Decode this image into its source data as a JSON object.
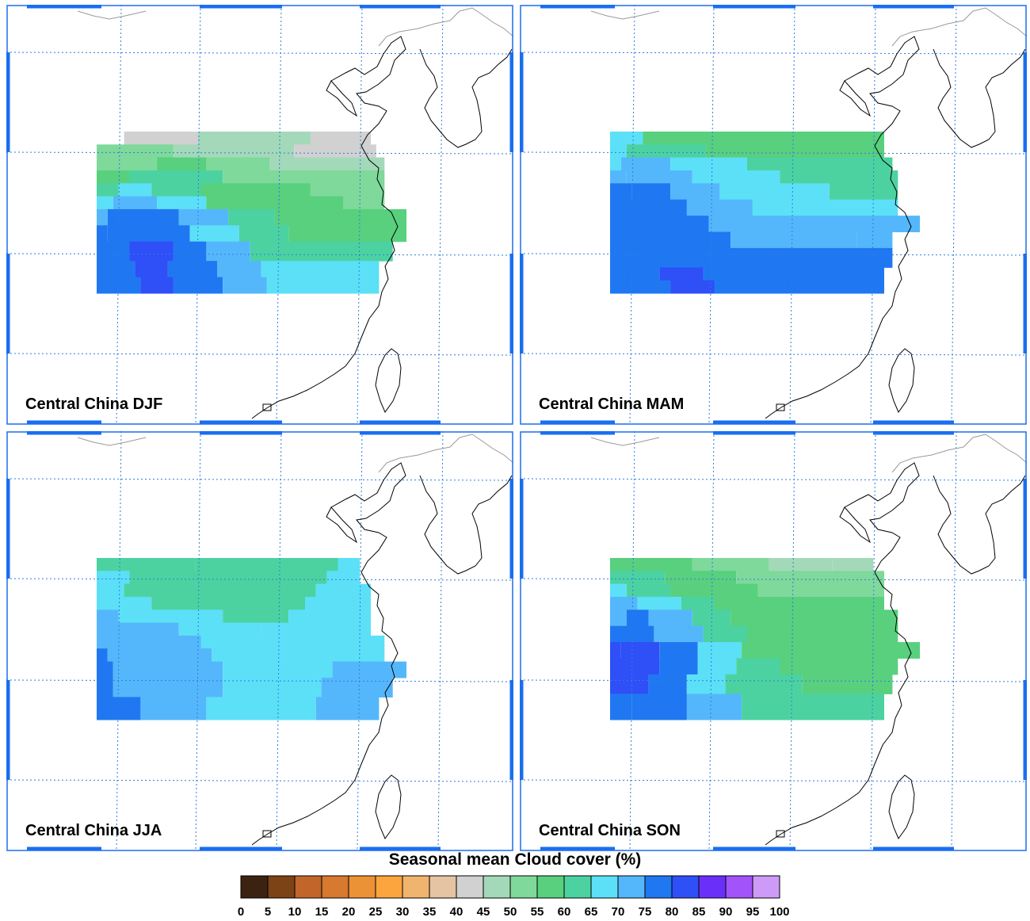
{
  "panels": [
    {
      "label": "Central China DJF",
      "bands": [
        {
          "y": 0.0,
          "parts": [
            [
              0.1,
              0.37,
              "#d1d1d1"
            ],
            [
              0.37,
              0.78,
              "#a3d9b8"
            ],
            [
              0.78,
              1.0,
              "#d1d1d1"
            ]
          ]
        },
        {
          "y": 0.08,
          "parts": [
            [
              0.0,
              0.28,
              "#7ed99a"
            ],
            [
              0.28,
              0.72,
              "#a3d9b8"
            ],
            [
              0.72,
              1.02,
              "#d1d1d1"
            ]
          ]
        },
        {
          "y": 0.16,
          "parts": [
            [
              0.0,
              0.22,
              "#7ed99a"
            ],
            [
              0.22,
              0.4,
              "#58d07e"
            ],
            [
              0.4,
              0.63,
              "#7ed99a"
            ],
            [
              0.63,
              1.05,
              "#a3d9b8"
            ]
          ]
        },
        {
          "y": 0.24,
          "parts": [
            [
              0.0,
              0.12,
              "#58d07e"
            ],
            [
              0.12,
              0.46,
              "#4cd2a0"
            ],
            [
              0.46,
              1.05,
              "#7ed99a"
            ]
          ]
        },
        {
          "y": 0.32,
          "parts": [
            [
              0.0,
              0.08,
              "#4cd2a0"
            ],
            [
              0.08,
              0.2,
              "#5ce0f7"
            ],
            [
              0.2,
              0.38,
              "#4cd2a0"
            ],
            [
              0.38,
              0.78,
              "#58d07e"
            ],
            [
              0.78,
              1.05,
              "#7ed99a"
            ]
          ]
        },
        {
          "y": 0.4,
          "parts": [
            [
              0.0,
              0.06,
              "#5ce0f7"
            ],
            [
              0.06,
              0.22,
              "#55b7fb"
            ],
            [
              0.22,
              0.4,
              "#5ce0f7"
            ],
            [
              0.4,
              0.9,
              "#58d07e"
            ],
            [
              0.9,
              1.05,
              "#7ed99a"
            ]
          ]
        },
        {
          "y": 0.48,
          "parts": [
            [
              0.0,
              0.04,
              "#55b7fb"
            ],
            [
              0.04,
              0.3,
              "#1f78f2"
            ],
            [
              0.3,
              0.48,
              "#55b7fb"
            ],
            [
              0.48,
              0.65,
              "#4cd2a0"
            ],
            [
              0.65,
              1.13,
              "#58d07e"
            ]
          ]
        },
        {
          "y": 0.58,
          "parts": [
            [
              0.0,
              0.04,
              "#1f78f2"
            ],
            [
              0.04,
              0.34,
              "#1f78f2"
            ],
            [
              0.34,
              0.52,
              "#5ce0f7"
            ],
            [
              0.52,
              0.7,
              "#4cd2a0"
            ],
            [
              0.7,
              1.13,
              "#58d07e"
            ]
          ]
        },
        {
          "y": 0.68,
          "parts": [
            [
              0.0,
              0.12,
              "#1f78f2"
            ],
            [
              0.12,
              0.28,
              "#2f4ff7"
            ],
            [
              0.28,
              0.4,
              "#1f78f2"
            ],
            [
              0.4,
              0.56,
              "#55b7fb"
            ],
            [
              0.56,
              1.08,
              "#4cd2a0"
            ]
          ]
        },
        {
          "y": 0.8,
          "parts": [
            [
              0.0,
              0.14,
              "#1f78f2"
            ],
            [
              0.14,
              0.26,
              "#2f4ff7"
            ],
            [
              0.26,
              0.44,
              "#1f78f2"
            ],
            [
              0.44,
              0.6,
              "#55b7fb"
            ],
            [
              0.6,
              1.03,
              "#5ce0f7"
            ]
          ]
        },
        {
          "y": 0.9,
          "parts": [
            [
              0.0,
              0.16,
              "#1f78f2"
            ],
            [
              0.16,
              0.28,
              "#2f4ff7"
            ],
            [
              0.28,
              0.46,
              "#1f78f2"
            ],
            [
              0.46,
              0.62,
              "#55b7fb"
            ],
            [
              0.62,
              1.03,
              "#5ce0f7"
            ]
          ]
        }
      ]
    },
    {
      "label": "Central China MAM",
      "bands": [
        {
          "y": 0.0,
          "parts": [
            [
              0.0,
              0.12,
              "#5ce0f7"
            ],
            [
              0.12,
              1.0,
              "#58d07e"
            ]
          ]
        },
        {
          "y": 0.08,
          "parts": [
            [
              0.0,
              0.06,
              "#5ce0f7"
            ],
            [
              0.06,
              0.35,
              "#4cd2a0"
            ],
            [
              0.35,
              1.0,
              "#58d07e"
            ]
          ]
        },
        {
          "y": 0.16,
          "parts": [
            [
              0.0,
              0.04,
              "#5ce0f7"
            ],
            [
              0.04,
              0.22,
              "#55b7fb"
            ],
            [
              0.22,
              0.5,
              "#5ce0f7"
            ],
            [
              0.5,
              1.03,
              "#4cd2a0"
            ]
          ]
        },
        {
          "y": 0.24,
          "parts": [
            [
              0.0,
              0.06,
              "#55b7fb"
            ],
            [
              0.06,
              0.3,
              "#55b7fb"
            ],
            [
              0.3,
              0.62,
              "#5ce0f7"
            ],
            [
              0.62,
              1.05,
              "#4cd2a0"
            ]
          ]
        },
        {
          "y": 0.32,
          "parts": [
            [
              0.0,
              0.08,
              "#1f78f2"
            ],
            [
              0.08,
              0.22,
              "#1f78f2"
            ],
            [
              0.22,
              0.4,
              "#55b7fb"
            ],
            [
              0.4,
              0.8,
              "#5ce0f7"
            ],
            [
              0.8,
              1.05,
              "#4cd2a0"
            ]
          ]
        },
        {
          "y": 0.42,
          "parts": [
            [
              0.0,
              0.28,
              "#1f78f2"
            ],
            [
              0.28,
              0.52,
              "#55b7fb"
            ],
            [
              0.52,
              1.05,
              "#5ce0f7"
            ]
          ]
        },
        {
          "y": 0.52,
          "parts": [
            [
              0.0,
              0.36,
              "#1f78f2"
            ],
            [
              0.36,
              0.62,
              "#55b7fb"
            ],
            [
              0.62,
              1.0,
              "#55b7fb"
            ],
            [
              1.0,
              1.13,
              "#55b7fb"
            ]
          ]
        },
        {
          "y": 0.62,
          "parts": [
            [
              0.0,
              0.44,
              "#1f78f2"
            ],
            [
              0.44,
              0.9,
              "#55b7fb"
            ],
            [
              0.9,
              1.03,
              "#55b7fb"
            ]
          ]
        },
        {
          "y": 0.72,
          "parts": [
            [
              0.0,
              1.03,
              "#1f78f2"
            ]
          ]
        },
        {
          "y": 0.84,
          "parts": [
            [
              0.0,
              0.18,
              "#1f78f2"
            ],
            [
              0.18,
              0.34,
              "#2f4ff7"
            ],
            [
              0.34,
              1.0,
              "#1f78f2"
            ]
          ]
        },
        {
          "y": 0.92,
          "parts": [
            [
              0.0,
              0.22,
              "#1f78f2"
            ],
            [
              0.22,
              0.38,
              "#2f4ff7"
            ],
            [
              0.38,
              1.0,
              "#1f78f2"
            ]
          ]
        }
      ]
    },
    {
      "label": "Central China JJA",
      "bands": [
        {
          "y": 0.0,
          "parts": [
            [
              0.0,
              0.36,
              "#4cd2a0"
            ],
            [
              0.36,
              0.88,
              "#4cd2a0"
            ],
            [
              0.88,
              0.96,
              "#5ce0f7"
            ]
          ]
        },
        {
          "y": 0.08,
          "parts": [
            [
              0.0,
              0.12,
              "#5ce0f7"
            ],
            [
              0.12,
              0.84,
              "#4cd2a0"
            ],
            [
              0.84,
              0.96,
              "#5ce0f7"
            ]
          ]
        },
        {
          "y": 0.16,
          "parts": [
            [
              0.0,
              0.1,
              "#5ce0f7"
            ],
            [
              0.1,
              0.8,
              "#4cd2a0"
            ],
            [
              0.8,
              1.0,
              "#5ce0f7"
            ]
          ]
        },
        {
          "y": 0.24,
          "parts": [
            [
              0.0,
              0.2,
              "#5ce0f7"
            ],
            [
              0.2,
              0.76,
              "#4cd2a0"
            ],
            [
              0.76,
              1.0,
              "#5ce0f7"
            ]
          ]
        },
        {
          "y": 0.32,
          "parts": [
            [
              0.0,
              0.08,
              "#55b7fb"
            ],
            [
              0.08,
              0.46,
              "#5ce0f7"
            ],
            [
              0.46,
              0.7,
              "#4cd2a0"
            ],
            [
              0.7,
              1.0,
              "#5ce0f7"
            ]
          ]
        },
        {
          "y": 0.4,
          "parts": [
            [
              0.0,
              0.3,
              "#55b7fb"
            ],
            [
              0.3,
              0.6,
              "#5ce0f7"
            ],
            [
              0.6,
              1.0,
              "#5ce0f7"
            ]
          ]
        },
        {
          "y": 0.48,
          "parts": [
            [
              0.0,
              0.38,
              "#55b7fb"
            ],
            [
              0.38,
              1.05,
              "#5ce0f7"
            ]
          ]
        },
        {
          "y": 0.56,
          "parts": [
            [
              0.0,
              0.04,
              "#1f78f2"
            ],
            [
              0.04,
              0.42,
              "#55b7fb"
            ],
            [
              0.42,
              1.05,
              "#5ce0f7"
            ]
          ]
        },
        {
          "y": 0.64,
          "parts": [
            [
              0.0,
              0.06,
              "#1f78f2"
            ],
            [
              0.06,
              0.46,
              "#55b7fb"
            ],
            [
              0.46,
              0.86,
              "#5ce0f7"
            ],
            [
              0.86,
              1.13,
              "#55b7fb"
            ]
          ]
        },
        {
          "y": 0.74,
          "parts": [
            [
              0.0,
              0.06,
              "#1f78f2"
            ],
            [
              0.06,
              0.46,
              "#55b7fb"
            ],
            [
              0.46,
              0.82,
              "#5ce0f7"
            ],
            [
              0.82,
              1.08,
              "#55b7fb"
            ]
          ]
        },
        {
          "y": 0.86,
          "parts": [
            [
              0.0,
              0.16,
              "#1f78f2"
            ],
            [
              0.16,
              0.4,
              "#55b7fb"
            ],
            [
              0.4,
              0.8,
              "#5ce0f7"
            ],
            [
              0.8,
              1.03,
              "#55b7fb"
            ]
          ]
        }
      ]
    },
    {
      "label": "Central China SON",
      "bands": [
        {
          "y": 0.0,
          "parts": [
            [
              0.0,
              0.3,
              "#58d07e"
            ],
            [
              0.3,
              0.58,
              "#7ed99a"
            ],
            [
              0.58,
              0.81,
              "#a3d9b8"
            ],
            [
              0.81,
              0.96,
              "#a3d9b8"
            ]
          ]
        },
        {
          "y": 0.08,
          "parts": [
            [
              0.0,
              0.2,
              "#4cd2a0"
            ],
            [
              0.2,
              0.46,
              "#58d07e"
            ],
            [
              0.46,
              1.0,
              "#7ed99a"
            ]
          ]
        },
        {
          "y": 0.16,
          "parts": [
            [
              0.0,
              0.06,
              "#5ce0f7"
            ],
            [
              0.06,
              0.22,
              "#4cd2a0"
            ],
            [
              0.22,
              0.54,
              "#58d07e"
            ],
            [
              0.54,
              1.0,
              "#7ed99a"
            ]
          ]
        },
        {
          "y": 0.24,
          "parts": [
            [
              0.0,
              0.1,
              "#55b7fb"
            ],
            [
              0.1,
              0.26,
              "#5ce0f7"
            ],
            [
              0.26,
              0.38,
              "#4cd2a0"
            ],
            [
              0.38,
              1.0,
              "#58d07e"
            ]
          ]
        },
        {
          "y": 0.32,
          "parts": [
            [
              0.0,
              0.06,
              "#55b7fb"
            ],
            [
              0.06,
              0.14,
              "#1f78f2"
            ],
            [
              0.14,
              0.3,
              "#55b7fb"
            ],
            [
              0.3,
              0.44,
              "#4cd2a0"
            ],
            [
              0.44,
              1.05,
              "#58d07e"
            ]
          ]
        },
        {
          "y": 0.42,
          "parts": [
            [
              0.0,
              0.16,
              "#1f78f2"
            ],
            [
              0.16,
              0.34,
              "#55b7fb"
            ],
            [
              0.34,
              0.5,
              "#4cd2a0"
            ],
            [
              0.5,
              1.05,
              "#58d07e"
            ]
          ]
        },
        {
          "y": 0.52,
          "parts": [
            [
              0.0,
              0.04,
              "#2f4ff7"
            ],
            [
              0.04,
              0.18,
              "#2f4ff7"
            ],
            [
              0.18,
              0.32,
              "#1f78f2"
            ],
            [
              0.32,
              0.48,
              "#5ce0f7"
            ],
            [
              0.48,
              1.13,
              "#58d07e"
            ]
          ]
        },
        {
          "y": 0.62,
          "parts": [
            [
              0.0,
              0.18,
              "#2f4ff7"
            ],
            [
              0.18,
              0.32,
              "#1f78f2"
            ],
            [
              0.32,
              0.46,
              "#5ce0f7"
            ],
            [
              0.46,
              0.62,
              "#4cd2a0"
            ],
            [
              0.62,
              1.05,
              "#58d07e"
            ]
          ]
        },
        {
          "y": 0.72,
          "parts": [
            [
              0.0,
              0.14,
              "#2f4ff7"
            ],
            [
              0.14,
              0.28,
              "#1f78f2"
            ],
            [
              0.28,
              0.42,
              "#5ce0f7"
            ],
            [
              0.42,
              0.7,
              "#4cd2a0"
            ],
            [
              0.7,
              1.03,
              "#58d07e"
            ]
          ]
        },
        {
          "y": 0.84,
          "parts": [
            [
              0.0,
              0.08,
              "#1f78f2"
            ],
            [
              0.08,
              0.28,
              "#1f78f2"
            ],
            [
              0.28,
              0.48,
              "#55b7fb"
            ],
            [
              0.48,
              1.0,
              "#4cd2a0"
            ]
          ]
        }
      ]
    }
  ],
  "colorbar": {
    "title": "Seasonal mean Cloud cover (%)",
    "ticks": [
      "0",
      "5",
      "10",
      "15",
      "20",
      "25",
      "30",
      "35",
      "40",
      "45",
      "50",
      "55",
      "60",
      "65",
      "70",
      "75",
      "80",
      "85",
      "90",
      "95",
      "100"
    ],
    "colors": [
      "#3c2210",
      "#7c4316",
      "#c2652a",
      "#d7792e",
      "#ec9236",
      "#fca53f",
      "#f1b46f",
      "#e4c4a2",
      "#d1d1d1",
      "#a3d9b8",
      "#7ed99a",
      "#58d07e",
      "#4cd2a0",
      "#5ce0f7",
      "#55b7fb",
      "#1f78f2",
      "#2f4ff7",
      "#6b2ffa",
      "#a254fa",
      "#cd9af8"
    ]
  },
  "style": {
    "frame_color": "#1a6ef0",
    "grid_color": "#2e7de0",
    "coast_color": "#000000",
    "border_color": "#9a9a9a"
  }
}
